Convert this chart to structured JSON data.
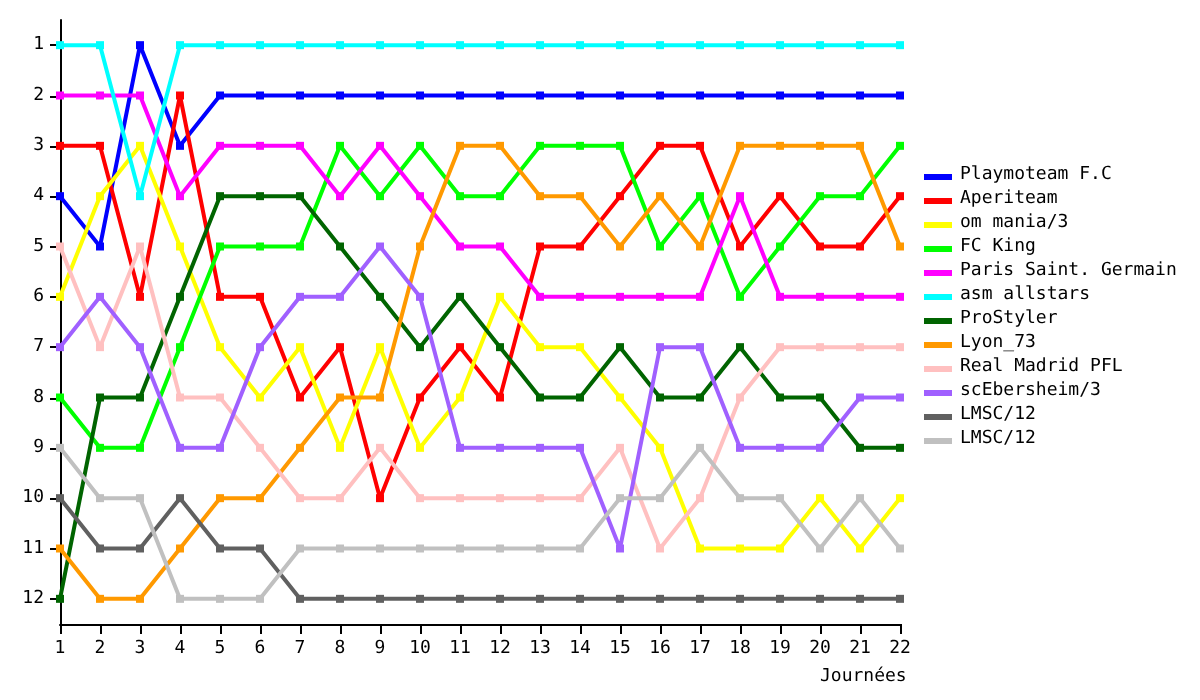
{
  "chart_data": {
    "type": "line",
    "xlabel": "Journées",
    "categories": [
      "1",
      "2",
      "3",
      "4",
      "5",
      "6",
      "7",
      "8",
      "9",
      "10",
      "11",
      "12",
      "13",
      "14",
      "15",
      "16",
      "17",
      "18",
      "19",
      "20",
      "21",
      "22"
    ],
    "ylim": [
      12.5,
      0.5
    ],
    "yticks": [
      1,
      2,
      3,
      4,
      5,
      6,
      7,
      8,
      9,
      10,
      11,
      12
    ],
    "grid": false,
    "legend": "right",
    "marker": "square",
    "line_style": "solid",
    "series": [
      {
        "name": "Playmoteam F.C",
        "color": "#0000ff",
        "values": [
          4,
          5,
          1,
          3,
          2,
          2,
          2,
          2,
          2,
          2,
          2,
          2,
          2,
          2,
          2,
          2,
          2,
          2,
          2,
          2,
          2,
          2
        ]
      },
      {
        "name": "Aperiteam",
        "color": "#ff0000",
        "values": [
          3,
          3,
          6,
          2,
          6,
          6,
          8,
          7,
          10,
          8,
          7,
          8,
          5,
          5,
          4,
          3,
          3,
          5,
          4,
          5,
          5,
          4
        ]
      },
      {
        "name": "om mania/3",
        "color": "#ffff00",
        "values": [
          6,
          4,
          3,
          5,
          7,
          8,
          7,
          9,
          7,
          9,
          8,
          6,
          7,
          7,
          8,
          9,
          11,
          11,
          11,
          10,
          11,
          10
        ]
      },
      {
        "name": "FC King",
        "color": "#00ff00",
        "values": [
          8,
          9,
          9,
          7,
          5,
          5,
          5,
          3,
          4,
          3,
          4,
          4,
          3,
          3,
          3,
          5,
          4,
          6,
          5,
          4,
          4,
          3
        ]
      },
      {
        "name": "Paris Saint. Germain",
        "color": "#ff00ff",
        "values": [
          2,
          2,
          2,
          4,
          3,
          3,
          3,
          4,
          3,
          4,
          5,
          5,
          6,
          6,
          6,
          6,
          6,
          4,
          6,
          6,
          6,
          6
        ]
      },
      {
        "name": "asm allstars",
        "color": "#00ffff",
        "values": [
          1,
          1,
          4,
          1,
          1,
          1,
          1,
          1,
          1,
          1,
          1,
          1,
          1,
          1,
          1,
          1,
          1,
          1,
          1,
          1,
          1,
          1
        ]
      },
      {
        "name": "ProStyler",
        "color": "#006400",
        "values": [
          12,
          8,
          8,
          6,
          4,
          4,
          4,
          5,
          6,
          7,
          6,
          7,
          8,
          8,
          7,
          8,
          8,
          7,
          8,
          8,
          9,
          9
        ]
      },
      {
        "name": "Lyon_73",
        "color": "#ff9900",
        "values": [
          11,
          12,
          12,
          11,
          10,
          10,
          9,
          8,
          8,
          5,
          3,
          3,
          4,
          4,
          5,
          4,
          5,
          3,
          3,
          3,
          3,
          5
        ]
      },
      {
        "name": "Real Madrid PFL",
        "color": "#ffc0c0",
        "values": [
          5,
          7,
          5,
          8,
          8,
          9,
          10,
          10,
          9,
          10,
          10,
          10,
          10,
          10,
          9,
          11,
          10,
          8,
          7,
          7,
          7,
          7
        ]
      },
      {
        "name": "scEbersheim/3",
        "color": "#a060ff",
        "values": [
          7,
          6,
          7,
          9,
          9,
          7,
          6,
          6,
          5,
          6,
          9,
          9,
          9,
          9,
          11,
          7,
          7,
          9,
          9,
          9,
          8,
          8
        ]
      },
      {
        "name": "LMSC/12",
        "color": "#606060",
        "values": [
          10,
          11,
          11,
          10,
          11,
          11,
          12,
          12,
          12,
          12,
          12,
          12,
          12,
          12,
          12,
          12,
          12,
          12,
          12,
          12,
          12,
          12
        ]
      },
      {
        "name": "LMSC/12",
        "color": "#c0c0c0",
        "values": [
          9,
          10,
          10,
          12,
          12,
          12,
          11,
          11,
          11,
          11,
          11,
          11,
          11,
          11,
          10,
          10,
          9,
          10,
          10,
          11,
          10,
          11
        ]
      }
    ]
  }
}
